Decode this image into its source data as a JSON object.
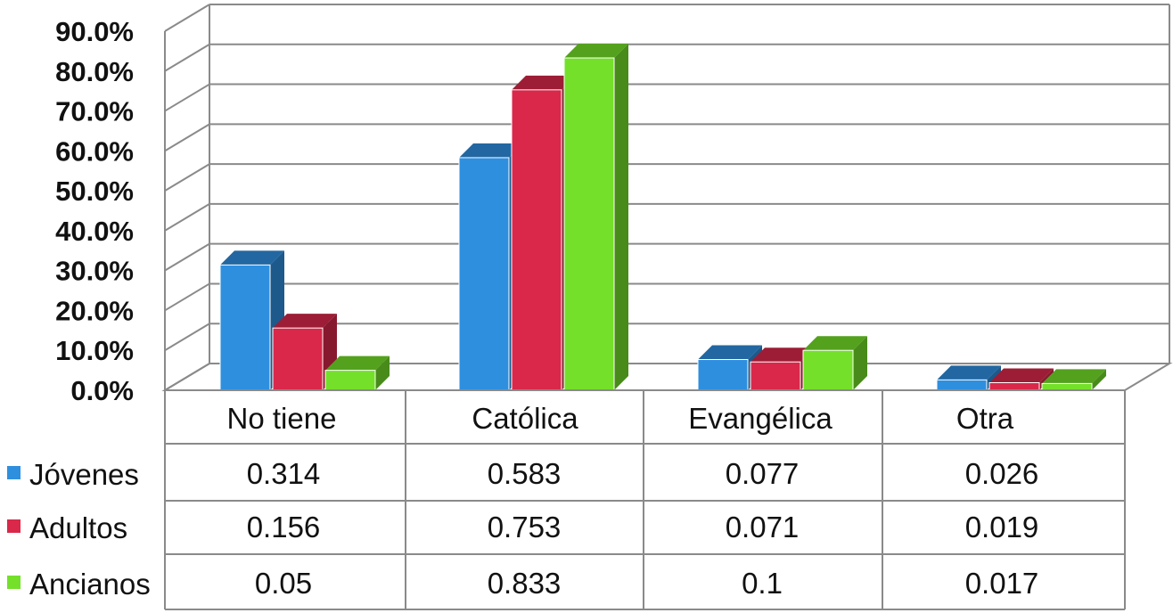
{
  "chart_data": {
    "type": "bar",
    "style": "3d-clustered-column-with-data-table",
    "title": "",
    "xlabel": "",
    "ylabel": "",
    "categories": [
      "No tiene",
      "Católica",
      "Evangélica",
      "Otra"
    ],
    "series": [
      {
        "name": "Jóvenes",
        "values": [
          0.314,
          0.583,
          0.077,
          0.026
        ],
        "value_labels": [
          "0.314",
          "0.583",
          "0.077",
          "0.026"
        ],
        "color": "#2f8fdf"
      },
      {
        "name": "Adultos",
        "values": [
          0.156,
          0.753,
          0.071,
          0.019
        ],
        "value_labels": [
          "0.156",
          "0.753",
          "0.071",
          "0.019"
        ],
        "color": "#d9284a"
      },
      {
        "name": "Ancianos",
        "values": [
          0.05,
          0.833,
          0.1,
          0.017
        ],
        "value_labels": [
          "0.05",
          "0.833",
          "0.1",
          "0.017"
        ],
        "color": "#74e02a"
      }
    ],
    "ylim": [
      0,
      0.9
    ],
    "yticks": [
      "0.0%",
      "10.0%",
      "20.0%",
      "30.0%",
      "40.0%",
      "50.0%",
      "60.0%",
      "70.0%",
      "80.0%",
      "90.0%"
    ],
    "grid": true,
    "legend_position": "left of data table"
  }
}
